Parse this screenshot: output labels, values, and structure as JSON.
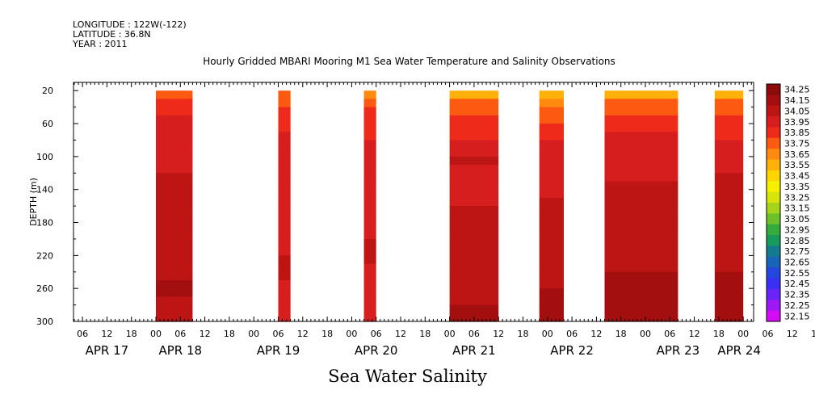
{
  "header": {
    "longitude": "LONGITUDE : 122W(-122)",
    "latitude": "LATITUDE : 36.8N",
    "year": "YEAR : 2011"
  },
  "chart_data": {
    "type": "heatmap",
    "title": "Hourly Gridded MBARI Mooring M1 Sea Water Temperature and Salinity Observations",
    "subtitle": "Sea Water Salinity",
    "ylabel": "DEPTH (m)",
    "xlabel": "",
    "ylim": [
      300,
      10
    ],
    "y_ticks": [
      20,
      60,
      100,
      140,
      180,
      220,
      260,
      300
    ],
    "x_hours_range": [
      -20,
      532
    ],
    "x_hour_tick_labels": [
      "06",
      "12",
      "18",
      "00",
      "06",
      "12",
      "18",
      "00",
      "06",
      "12",
      "18",
      "00",
      "06",
      "12",
      "18",
      "00",
      "06",
      "12",
      "18",
      "00",
      "06",
      "12",
      "18",
      "00",
      "06",
      "12",
      "18",
      "00",
      "06",
      "12",
      "18",
      "00"
    ],
    "x_hour_tick_values": [
      -18,
      -12,
      -6,
      0,
      6,
      12,
      18,
      24,
      30,
      36,
      42,
      48,
      54,
      60,
      66,
      72,
      78,
      84,
      90,
      96,
      102,
      108,
      114,
      120,
      126,
      132,
      138,
      144,
      150,
      156,
      162,
      168
    ],
    "day_labels": [
      {
        "label": "APR 17",
        "hour": -12
      },
      {
        "label": "APR 18",
        "hour": 6
      },
      {
        "label": "APR 19",
        "hour": 30
      },
      {
        "label": "APR 20",
        "hour": 54
      },
      {
        "label": "APR 21",
        "hour": 78
      },
      {
        "label": "APR 22",
        "hour": 102
      },
      {
        "label": "APR 23",
        "hour": 128
      },
      {
        "label": "APR 24",
        "hour": 143
      }
    ],
    "data_segments": [
      {
        "start_hour": 0,
        "end_hour": 9,
        "surface_salinity": 33.8,
        "mid_salinity": 33.97,
        "deep_salinity": 34.1
      },
      {
        "start_hour": 30,
        "end_hour": 33,
        "surface_salinity": 33.7,
        "mid_salinity": 33.95,
        "deep_salinity": 34.0
      },
      {
        "start_hour": 51,
        "end_hour": 54,
        "surface_salinity": 33.65,
        "mid_salinity": 33.95,
        "deep_salinity": 34.0
      },
      {
        "start_hour": 72,
        "end_hour": 84,
        "surface_salinity": 33.55,
        "mid_salinity": 33.98,
        "deep_salinity": 34.12
      },
      {
        "start_hour": 94,
        "end_hour": 100,
        "surface_salinity": 33.5,
        "mid_salinity": 33.98,
        "deep_salinity": 34.12
      },
      {
        "start_hour": 110,
        "end_hour": 128,
        "surface_salinity": 33.55,
        "mid_salinity": 34.0,
        "deep_salinity": 34.15
      },
      {
        "start_hour": 137,
        "end_hour": 144,
        "surface_salinity": 33.55,
        "mid_salinity": 33.98,
        "deep_salinity": 34.12
      }
    ],
    "colorbar": {
      "levels": [
        "34.25",
        "34.15",
        "34.05",
        "33.95",
        "33.85",
        "33.75",
        "33.65",
        "33.55",
        "33.45",
        "33.35",
        "33.25",
        "33.15",
        "33.05",
        "32.95",
        "32.85",
        "32.75",
        "32.65",
        "32.55",
        "32.45",
        "32.35",
        "32.25",
        "32.15"
      ],
      "colors": [
        "#8b0a0a",
        "#a30f0f",
        "#bd1414",
        "#d71e1e",
        "#ee2a1a",
        "#fb5a10",
        "#ff8a10",
        "#ffb00a",
        "#ffd400",
        "#f6f000",
        "#d6e40a",
        "#a6d41a",
        "#6cc02a",
        "#34ac3c",
        "#189a5c",
        "#127c8e",
        "#1864b8",
        "#2448dc",
        "#3a30f4",
        "#6a24f6",
        "#9e18f6",
        "#d30cf4"
      ]
    }
  }
}
